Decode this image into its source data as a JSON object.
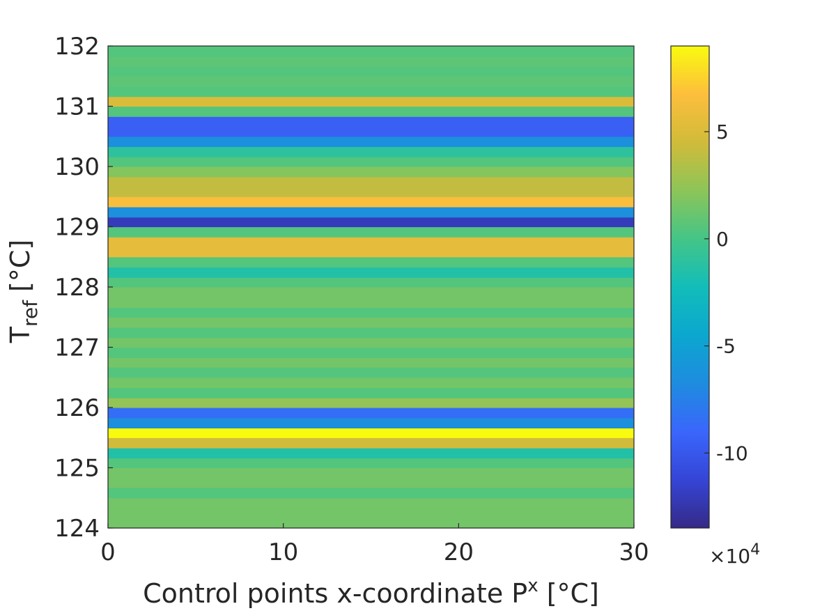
{
  "chart_data": {
    "type": "heatmap",
    "xlabel": {
      "main": "Control points x-coordinate P",
      "sup": "x",
      "tail": " [°C]"
    },
    "ylabel": {
      "main": "T",
      "sub": "ref",
      "tail": " [°C]"
    },
    "xlim": [
      0,
      30
    ],
    "ylim": [
      124,
      132
    ],
    "xticks": [
      "0",
      "10",
      "20",
      "30"
    ],
    "yticks": [
      "124",
      "125",
      "126",
      "127",
      "128",
      "129",
      "130",
      "131",
      "132"
    ],
    "grid": false,
    "colormap": "parula",
    "colorbar": {
      "limits": [
        -13.5,
        9
      ],
      "ticks": [
        -10,
        -5,
        0,
        5
      ],
      "tick_labels": [
        "-10",
        "-5",
        "0",
        "5"
      ],
      "exponent_label": {
        "base": "×10",
        "exp": "4"
      },
      "multiplier": 10000
    },
    "rows": [
      {
        "y0": 124.0,
        "y1": 124.5,
        "value": 1.5
      },
      {
        "y0": 124.5,
        "y1": 124.67,
        "value": 0.5
      },
      {
        "y0": 124.67,
        "y1": 125.0,
        "value": 1.5
      },
      {
        "y0": 125.0,
        "y1": 125.16,
        "value": 0.5
      },
      {
        "y0": 125.16,
        "y1": 125.33,
        "value": -1.5
      },
      {
        "y0": 125.33,
        "y1": 125.5,
        "value": 4.5
      },
      {
        "y0": 125.5,
        "y1": 125.66,
        "value": 9.0
      },
      {
        "y0": 125.66,
        "y1": 125.83,
        "value": -6.5
      },
      {
        "y0": 125.83,
        "y1": 126.0,
        "value": -8.5
      },
      {
        "y0": 126.0,
        "y1": 126.16,
        "value": 2.5
      },
      {
        "y0": 126.16,
        "y1": 126.33,
        "value": 0.5
      },
      {
        "y0": 126.33,
        "y1": 126.5,
        "value": 1.5
      },
      {
        "y0": 126.5,
        "y1": 126.67,
        "value": 0.5
      },
      {
        "y0": 126.67,
        "y1": 126.83,
        "value": 1.5
      },
      {
        "y0": 126.83,
        "y1": 127.0,
        "value": 0.5
      },
      {
        "y0": 127.0,
        "y1": 127.16,
        "value": 1.5
      },
      {
        "y0": 127.16,
        "y1": 127.33,
        "value": 0.5
      },
      {
        "y0": 127.33,
        "y1": 127.5,
        "value": 1.5
      },
      {
        "y0": 127.5,
        "y1": 127.66,
        "value": 0.5
      },
      {
        "y0": 127.66,
        "y1": 128.0,
        "value": 1.5
      },
      {
        "y0": 128.0,
        "y1": 128.16,
        "value": 0.5
      },
      {
        "y0": 128.16,
        "y1": 128.33,
        "value": -1.5
      },
      {
        "y0": 128.33,
        "y1": 128.5,
        "value": 0.5
      },
      {
        "y0": 128.5,
        "y1": 128.83,
        "value": 5.5
      },
      {
        "y0": 128.83,
        "y1": 129.0,
        "value": 0.5
      },
      {
        "y0": 129.0,
        "y1": 129.16,
        "value": -12.0
      },
      {
        "y0": 129.16,
        "y1": 129.33,
        "value": -6.5
      },
      {
        "y0": 129.33,
        "y1": 129.5,
        "value": 6.5
      },
      {
        "y0": 129.5,
        "y1": 129.83,
        "value": 4.0
      },
      {
        "y0": 129.83,
        "y1": 130.0,
        "value": 2.0
      },
      {
        "y0": 130.0,
        "y1": 130.16,
        "value": 0.5
      },
      {
        "y0": 130.16,
        "y1": 130.33,
        "value": -1.0
      },
      {
        "y0": 130.33,
        "y1": 130.5,
        "value": -6.5
      },
      {
        "y0": 130.5,
        "y1": 130.83,
        "value": -9.5
      },
      {
        "y0": 130.83,
        "y1": 131.0,
        "value": 0.5
      },
      {
        "y0": 131.0,
        "y1": 131.16,
        "value": 5.0
      },
      {
        "y0": 131.16,
        "y1": 131.33,
        "value": 0.5
      },
      {
        "y0": 131.33,
        "y1": 131.5,
        "value": 0.8
      },
      {
        "y0": 131.5,
        "y1": 131.66,
        "value": 0.5
      },
      {
        "y0": 131.66,
        "y1": 131.83,
        "value": 0.8
      },
      {
        "y0": 131.83,
        "y1": 132.0,
        "value": 0.5
      }
    ]
  }
}
